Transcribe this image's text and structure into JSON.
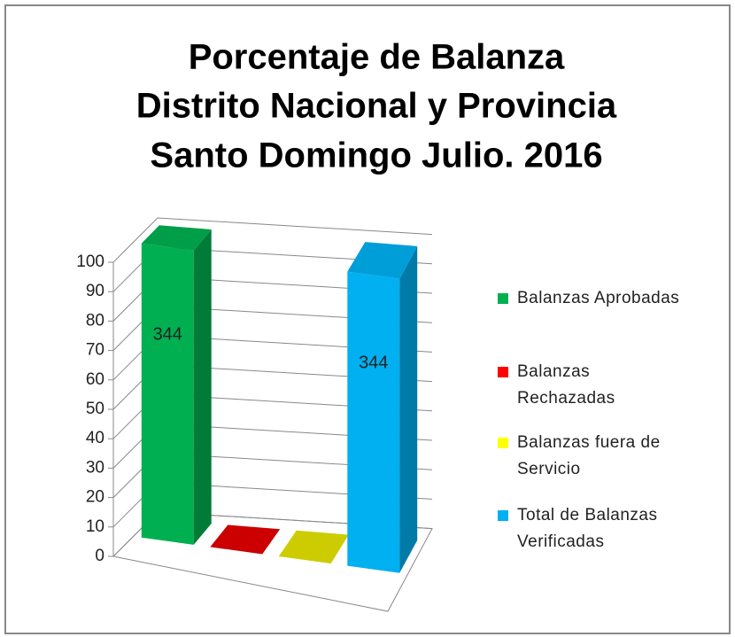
{
  "chart_data": {
    "type": "bar3d",
    "title": [
      "Porcentaje de Balanza",
      "Distrito Nacional y  Provincia",
      "Santo Domingo Julio. 2016"
    ],
    "categories": [
      "Balanzas Aprobadas",
      "Balanzas Rechazadas",
      "Balanzas fuera de Servicio",
      "Total de Balanzas Verificadas"
    ],
    "values": [
      100,
      0,
      0,
      100
    ],
    "data_labels": [
      344,
      null,
      null,
      344
    ],
    "colors": [
      "#00b050",
      "#ff0000",
      "#ffff00",
      "#00b0f0"
    ],
    "ylim": [
      0,
      100
    ],
    "yticks": [
      0,
      10,
      20,
      30,
      40,
      50,
      60,
      70,
      80,
      90,
      100
    ],
    "grid": true,
    "legend": "right"
  }
}
